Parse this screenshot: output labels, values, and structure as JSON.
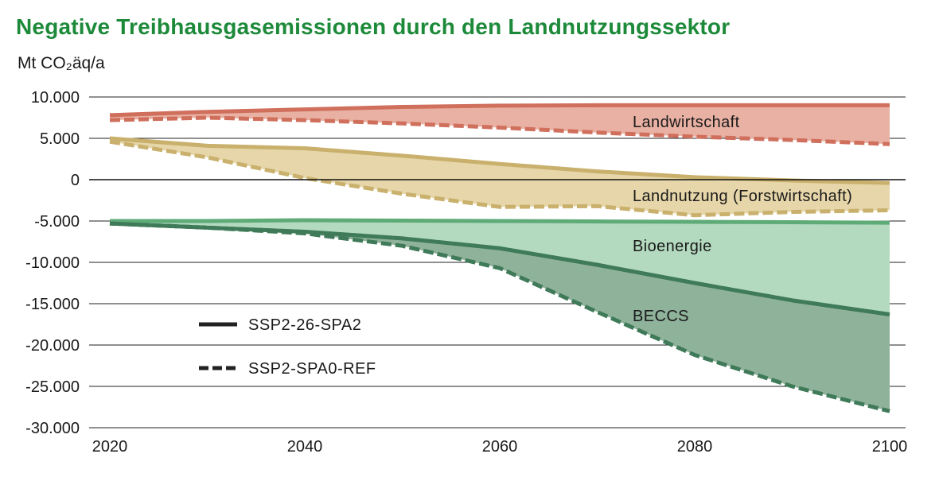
{
  "title": "Negative Treibhausgasemissionen durch den Landnutzungssektor",
  "unit_label": "Mt CO₂äq/a",
  "colors": {
    "title": "#1d8a3a",
    "agri_fill": "#e9b1a3",
    "agri_line": "#cf6f5c",
    "land_fill": "#e6d6a9",
    "land_line": "#c9b06c",
    "bio_fill": "#b3d9bf",
    "bio_line": "#5fab78",
    "beccs_fill": "#8fb29b",
    "beccs_line": "#3f7a59",
    "grid": "#222222",
    "legend": "#222222"
  },
  "chart_data": {
    "type": "area",
    "title": "Negative Treibhausgasemissionen durch den Landnutzungssektor",
    "ylabel": "Mt CO₂äq/a",
    "xlabel": "",
    "x": [
      2020,
      2030,
      2040,
      2050,
      2060,
      2070,
      2080,
      2090,
      2100
    ],
    "xticks": [
      2020,
      2040,
      2060,
      2080,
      2100
    ],
    "xtick_labels": [
      "2020",
      "2040",
      "2060",
      "2080",
      "2100"
    ],
    "yticks": [
      10000,
      5000,
      0,
      -5000,
      -10000,
      -15000,
      -20000,
      -25000,
      -30000
    ],
    "ytick_labels": [
      "10.000",
      "5.000",
      "0",
      "-5.000",
      "-10.000",
      "-15.000",
      "-20.000",
      "-25.000",
      "-30.000"
    ],
    "xlim": [
      2020,
      2100
    ],
    "ylim": [
      -30000,
      10000
    ],
    "grid": true,
    "series": [
      {
        "name": "Landwirtschaft",
        "solid": [
          7800,
          8200,
          8500,
          8800,
          8950,
          9000,
          9000,
          9000,
          9000
        ],
        "dashed": [
          7200,
          7500,
          7200,
          6800,
          6300,
          5700,
          5200,
          4800,
          4300
        ]
      },
      {
        "name": "Landnutzung (Forstwirtschaft)",
        "solid": [
          5000,
          4100,
          3800,
          2900,
          1900,
          1000,
          300,
          -100,
          -400
        ],
        "dashed": [
          4600,
          2700,
          200,
          -1700,
          -3300,
          -3200,
          -4300,
          -3900,
          -3700
        ]
      },
      {
        "name": "Bioenergie",
        "solid": [
          -5000,
          -5000,
          -4900,
          -4950,
          -5000,
          -5050,
          -5100,
          -5150,
          -5200
        ],
        "dashed": [
          -5300,
          -5800,
          -6300,
          -7100,
          -8300,
          -10300,
          -12500,
          -14600,
          -16300
        ]
      },
      {
        "name": "BECCS",
        "solid": [
          -5300,
          -5800,
          -6300,
          -7100,
          -8300,
          -10300,
          -12500,
          -14600,
          -16300
        ],
        "dashed": [
          -5300,
          -5800,
          -6500,
          -8000,
          -10700,
          -16000,
          -21200,
          -25000,
          -28000
        ]
      }
    ],
    "legend": [
      {
        "label": "SSP2-26-SPA2",
        "style": "solid"
      },
      {
        "label": "SSP2-SPA0-REF",
        "style": "dashed"
      }
    ],
    "legend_position": "bottom-left"
  }
}
